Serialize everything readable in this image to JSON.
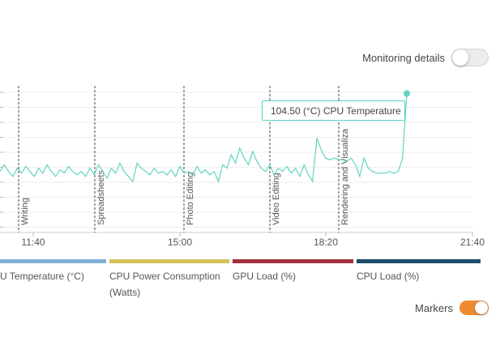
{
  "monitoring": {
    "label": "Monitoring details",
    "enabled": false
  },
  "markers": {
    "label": "Markers",
    "enabled": true
  },
  "tooltip": {
    "text": "104.50 (°C) CPU Temperature"
  },
  "colors": {
    "cpu_temperature": "#7fb2d4",
    "cpu_power": "#d4c35a",
    "gpu_load": "#a33240",
    "cpu_load": "#1d4e6b",
    "line": "#62d3c4",
    "toggle_on": "#f08a30"
  },
  "legend": [
    {
      "label": "U Temperature (°C)",
      "color": "#7fb2d4"
    },
    {
      "label": "CPU Power Consumption (Watts)",
      "color": "#d4c35a"
    },
    {
      "label": "GPU Load (%)",
      "color": "#a33240"
    },
    {
      "label": "CPU Load (%)",
      "color": "#1d4e6b"
    }
  ],
  "chart_data": {
    "type": "line",
    "x_ticks": [
      "11:40",
      "15:00",
      "18:20",
      "21:40"
    ],
    "markers": [
      "Writing",
      "Spreadsheets",
      "Photo Editing",
      "Video Editing",
      "Rendering and Visualiza"
    ],
    "series": [
      {
        "name": "CPU Temperature",
        "unit": "°C",
        "values": [
          58,
          62,
          58,
          55,
          60,
          57,
          61,
          58,
          55,
          60,
          57,
          62,
          58,
          55,
          59,
          57,
          61,
          58,
          56,
          58,
          55,
          60,
          56,
          62,
          58,
          54,
          60,
          57,
          63,
          58,
          55,
          52,
          63,
          60,
          58,
          56,
          60,
          57,
          58,
          56,
          59,
          55,
          61,
          57,
          58,
          56,
          61,
          57,
          59,
          56,
          58,
          52,
          62,
          60,
          68,
          63,
          72,
          66,
          62,
          70,
          64,
          60,
          58,
          62,
          56,
          60,
          58,
          61,
          57,
          60,
          55,
          62,
          56,
          52,
          78,
          71,
          66,
          65,
          66,
          65,
          65,
          64,
          66,
          62,
          55,
          66,
          60,
          58,
          57,
          57,
          57,
          58,
          57,
          58,
          66,
          104.5
        ]
      }
    ],
    "highlight": {
      "value": 104.5,
      "label": "104.50 (°C) CPU Temperature"
    },
    "grid": true
  }
}
